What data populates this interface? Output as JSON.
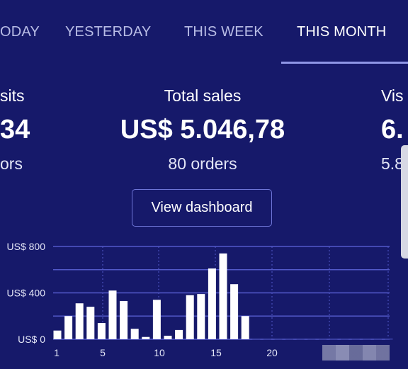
{
  "tabs": [
    {
      "label": "ODAY",
      "active": false
    },
    {
      "label": "YESTERDAY",
      "active": false
    },
    {
      "label": "THIS WEEK",
      "active": false
    },
    {
      "label": "THIS MONTH",
      "active": true
    }
  ],
  "stats": {
    "left": {
      "label": "sits",
      "value": "34",
      "sub": "ors"
    },
    "center": {
      "label": "Total sales",
      "value": "US$ 5.046,78",
      "sub": "80 orders"
    },
    "right": {
      "label": "Vis",
      "value": "6.",
      "sub": "5.8"
    }
  },
  "view_dashboard_label": "View dashboard",
  "colors": {
    "background": "#16196a",
    "bar": "#ffffff",
    "grid": "#5259c9",
    "accent": "#8f96e6"
  },
  "chart_data": {
    "type": "bar",
    "x": [
      1,
      2,
      3,
      4,
      5,
      6,
      7,
      8,
      9,
      10,
      11,
      12,
      13,
      14,
      15,
      16,
      17,
      18,
      19,
      20,
      21,
      22,
      23,
      24,
      25,
      26,
      27,
      28,
      29,
      30,
      31
    ],
    "values": [
      75,
      200,
      310,
      280,
      140,
      420,
      330,
      90,
      20,
      340,
      30,
      80,
      380,
      390,
      610,
      740,
      475,
      200,
      0,
      0,
      0,
      0,
      0,
      0,
      0,
      0,
      0,
      0,
      0,
      0,
      0
    ],
    "x_ticks": [
      "1",
      "5",
      "10",
      "15",
      "20"
    ],
    "y_ticks": [
      "US$ 0",
      "US$ 400",
      "US$ 800"
    ],
    "ylim": [
      0,
      800
    ]
  }
}
